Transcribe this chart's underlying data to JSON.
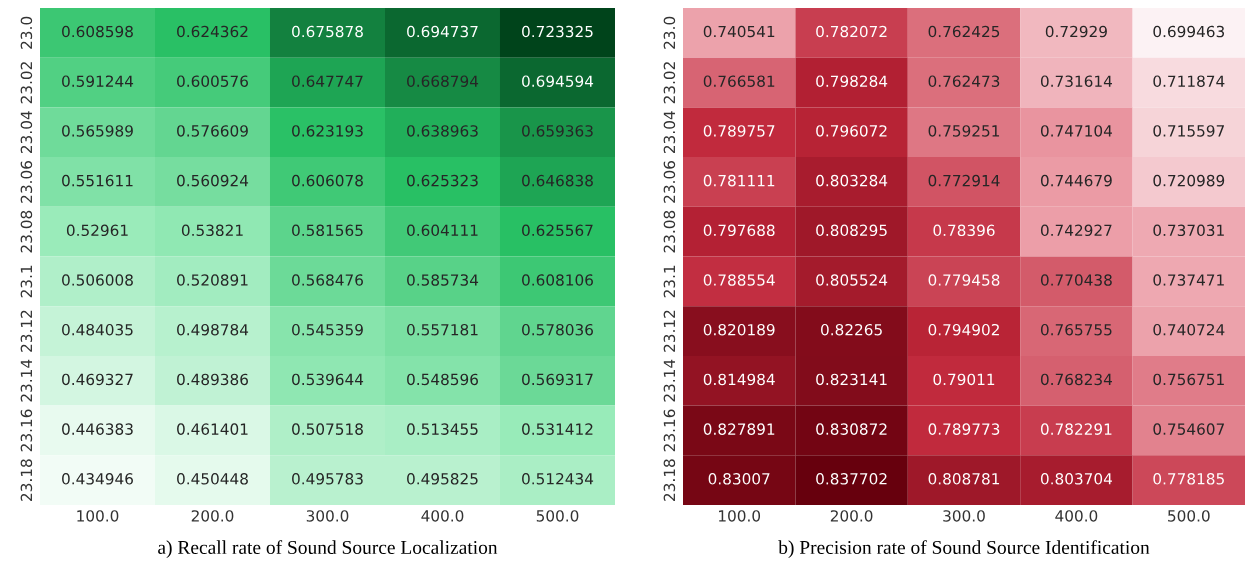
{
  "chart_data": [
    {
      "type": "heatmap",
      "title": "a) Recall rate of Sound Source Localization",
      "color": "#00441b",
      "categories": [
        "100.0",
        "200.0",
        "300.0",
        "400.0",
        "500.0"
      ],
      "y_categories": [
        "23.0",
        "23.02",
        "23.04",
        "23.06",
        "23.08",
        "23.1",
        "23.12",
        "23.14",
        "23.16",
        "23.18"
      ],
      "data_labels": true,
      "cells": [
        [
          0.608598,
          0.624362,
          0.675878,
          0.694737,
          0.723325
        ],
        [
          0.591244,
          0.600576,
          0.647747,
          0.668794,
          0.694594
        ],
        [
          0.565989,
          0.576609,
          0.623193,
          0.638963,
          0.659363
        ],
        [
          0.551611,
          0.560924,
          0.606078,
          0.625323,
          0.646838
        ],
        [
          0.52961,
          0.53821,
          0.581565,
          0.604111,
          0.625567
        ],
        [
          0.506008,
          0.520891,
          0.568476,
          0.585734,
          0.608106
        ],
        [
          0.484035,
          0.498784,
          0.545359,
          0.557181,
          0.578036
        ],
        [
          0.469327,
          0.489386,
          0.539644,
          0.548596,
          0.569317
        ],
        [
          0.446383,
          0.461401,
          0.507518,
          0.513455,
          0.531412
        ],
        [
          0.434946,
          0.450448,
          0.495783,
          0.495825,
          0.512434
        ]
      ]
    },
    {
      "type": "heatmap",
      "title": "b) Precision rate of Sound Source Identification",
      "color": "#67000d",
      "categories": [
        "100.0",
        "200.0",
        "300.0",
        "400.0",
        "500.0"
      ],
      "y_categories": [
        "23.0",
        "23.02",
        "23.04",
        "23.06",
        "23.08",
        "23.1",
        "23.12",
        "23.14",
        "23.16",
        "23.18"
      ],
      "data_labels": true,
      "cells": [
        [
          0.740541,
          0.782072,
          0.762425,
          0.72929,
          0.699463
        ],
        [
          0.766581,
          0.798284,
          0.762473,
          0.731614,
          0.711874
        ],
        [
          0.789757,
          0.796072,
          0.759251,
          0.747104,
          0.715597
        ],
        [
          0.781111,
          0.803284,
          0.772914,
          0.744679,
          0.720989
        ],
        [
          0.797688,
          0.808295,
          0.78396,
          0.742927,
          0.737031
        ],
        [
          0.788554,
          0.805524,
          0.779458,
          0.770438,
          0.737471
        ],
        [
          0.820189,
          0.82265,
          0.794902,
          0.765755,
          0.740724
        ],
        [
          0.814984,
          0.823141,
          0.79011,
          0.768234,
          0.756751
        ],
        [
          0.827891,
          0.830872,
          0.789773,
          0.782291,
          0.754607
        ],
        [
          0.83007,
          0.837702,
          0.808781,
          0.803704,
          0.778185
        ]
      ]
    }
  ]
}
